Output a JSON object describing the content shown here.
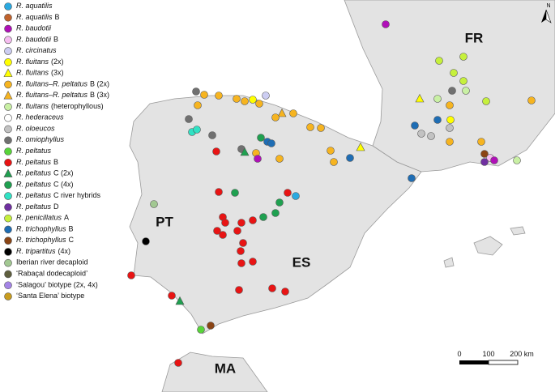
{
  "legend": [
    {
      "italic": "R. aquatilis",
      "color": "#2aa9e0",
      "marker": "circle"
    },
    {
      "italic": "R. aquatilis",
      "text": "B",
      "color": "#c0622c",
      "marker": "circle"
    },
    {
      "italic": "R. baudotii",
      "color": "#b010b8",
      "marker": "circle"
    },
    {
      "italic": "R. baudotii",
      "text": "B",
      "color": "#f6bdf0",
      "marker": "circle"
    },
    {
      "italic": "R. circinatus",
      "color": "#cccdf2",
      "marker": "circle"
    },
    {
      "italic": "R. fluitans",
      "text": "(2x)",
      "color": "#ffff00",
      "marker": "circle"
    },
    {
      "italic": "R. fluitans",
      "text": "(3x)",
      "color": "#ffff00",
      "marker": "triangle"
    },
    {
      "italic": "R. fluitans–R. peltatus",
      "text": "B (2x)",
      "color": "#f6b420",
      "marker": "circle"
    },
    {
      "italic": "R. fluitans–R. peltatus",
      "text": "B (3x)",
      "color": "#f6b420",
      "marker": "triangle"
    },
    {
      "italic": "R. fluitans",
      "text": "(heterophyllous)",
      "color": "#c9f0a4",
      "marker": "circle"
    },
    {
      "italic": "R. hederaceus",
      "color": "#ffffff",
      "marker": "circle"
    },
    {
      "italic": "R. oloeucos",
      "color": "#c2c2c2",
      "marker": "circle"
    },
    {
      "italic": "R. omiophyllus",
      "color": "#707070",
      "marker": "circle"
    },
    {
      "italic": "R. peltatus",
      "color": "#58d43a",
      "marker": "circle"
    },
    {
      "italic": "R. peltatus",
      "text": "B",
      "color": "#e81414",
      "marker": "circle"
    },
    {
      "italic": "R. peltatus",
      "text": "C (2x)",
      "color": "#1fa050",
      "marker": "triangle"
    },
    {
      "italic": "R. peltatus",
      "text": "C (4x)",
      "color": "#1fa050",
      "marker": "circle"
    },
    {
      "italic": "R. peltatus",
      "text": "C river hybrids",
      "color": "#30e2c4",
      "marker": "circle"
    },
    {
      "italic": "R. peltatus",
      "text": "D",
      "color": "#6f2fa0",
      "marker": "circle"
    },
    {
      "italic": "R. penicillatus",
      "text": "A",
      "color": "#c6f03c",
      "marker": "circle"
    },
    {
      "italic": "R. trichophyllus",
      "text": "B",
      "color": "#1e6db4",
      "marker": "circle"
    },
    {
      "italic": "R. trichophyllus",
      "text": "C",
      "color": "#8a4414",
      "marker": "circle"
    },
    {
      "italic": "R. tripartitus",
      "text": "(4x)",
      "color": "#000000",
      "marker": "circle"
    },
    {
      "text": "Iberian river decaploid",
      "color": "#a2c892",
      "marker": "circle"
    },
    {
      "text": "‘Rabaçal dodecaploid’",
      "color": "#5e5e3e",
      "marker": "circle"
    },
    {
      "text": "‘Salagou’ biotype (2x, 4x)",
      "color": "#a484e6",
      "marker": "circle"
    },
    {
      "text": "‘Santa Elena’ biotype",
      "color": "#c89c1e",
      "marker": "circle"
    }
  ],
  "countries": [
    "FR",
    "PT",
    "ES",
    "MA"
  ],
  "scale": [
    "0",
    "100",
    "200 km"
  ],
  "north": "N"
}
